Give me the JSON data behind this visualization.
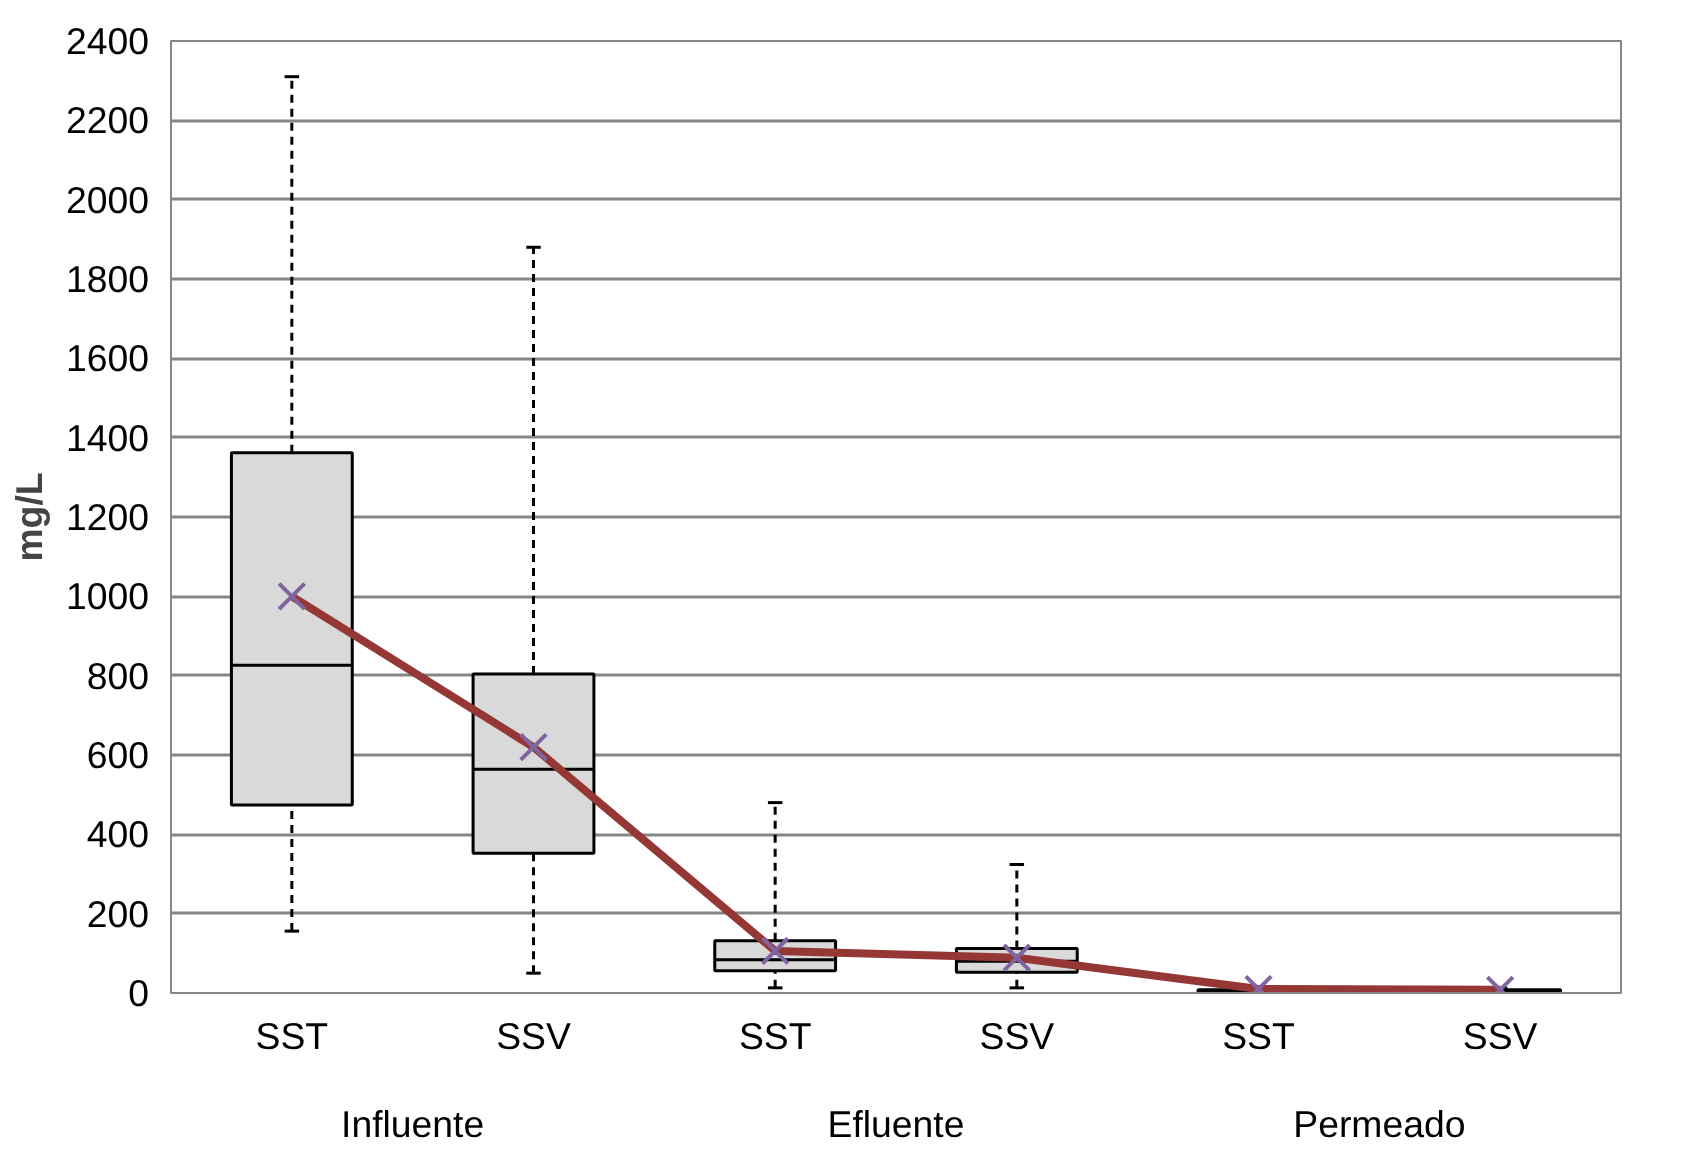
{
  "chart_data": {
    "type": "box",
    "ylabel": "mg/L",
    "categories": [
      "SST",
      "SSV",
      "SST",
      "SSV",
      "SST",
      "SSV"
    ],
    "annotations": [
      "Influente",
      "Efluente",
      "Permeado"
    ],
    "series": [
      {
        "color": "#d9d9d9",
        "boxes": [
          {
            "low": 156,
            "q1": 474,
            "median": 826,
            "q3": 1362,
            "high": 2310
          },
          {
            "low": 50,
            "q1": 352,
            "median": 564,
            "q3": 804,
            "high": 1880
          },
          {
            "low": 13,
            "q1": 56,
            "median": 84,
            "q3": 132,
            "high": 480
          },
          {
            "low": 13,
            "q1": 52,
            "median": 80,
            "q3": 112,
            "high": 324
          },
          {
            "low": 2,
            "q1": 3,
            "median": 5,
            "q3": 8,
            "high": 12
          },
          {
            "low": 2,
            "q1": 3,
            "median": 5,
            "q3": 8,
            "high": 12
          }
        ]
      },
      {
        "type": "line",
        "color": "#953735",
        "marker": "cross",
        "values": [
          1000,
          620,
          106,
          89,
          10,
          8
        ]
      }
    ],
    "ylim": [
      0,
      2400
    ],
    "yticks": [
      0,
      200,
      400,
      600,
      800,
      1000,
      1200,
      1400,
      1600,
      1800,
      2000,
      2200,
      2400
    ],
    "grid": "y"
  }
}
